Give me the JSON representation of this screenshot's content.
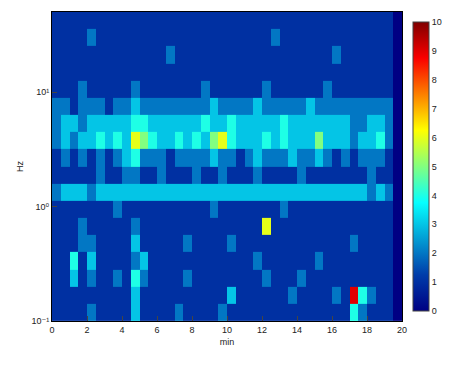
{
  "chart_data": {
    "type": "heatmap",
    "xlabel": "min",
    "ylabel": "Hz",
    "log": "y",
    "grid": false,
    "xlim": [
      0,
      20
    ],
    "xticks": [
      0,
      2,
      4,
      6,
      8,
      10,
      12,
      14,
      16,
      18,
      20
    ],
    "ylim": [
      0.1,
      50
    ],
    "yticks": [
      {
        "value": 0.1,
        "label": "10⁻¹"
      },
      {
        "value": 1,
        "label": "10⁰"
      },
      {
        "value": 10,
        "label": "10¹"
      }
    ],
    "x": [
      0.25,
      0.75,
      1.25,
      1.75,
      2.25,
      2.75,
      3.25,
      3.75,
      4.25,
      4.75,
      5.25,
      5.75,
      6.25,
      6.75,
      7.25,
      7.75,
      8.25,
      8.75,
      9.25,
      9.75,
      10.25,
      10.75,
      11.25,
      11.75,
      12.25,
      12.75,
      13.25,
      13.75,
      14.25,
      14.75,
      15.25,
      15.75,
      16.25,
      16.75,
      17.25,
      17.75,
      18.25,
      18.75,
      19.25,
      19.75
    ],
    "y": [
      0.119,
      0.168,
      0.237,
      0.335,
      0.473,
      0.668,
      0.944,
      1.33,
      1.88,
      2.66,
      3.76,
      5.31,
      7.5,
      10.6,
      15.0,
      21.1,
      29.9,
      42.2
    ],
    "z": [
      [
        1,
        1,
        1,
        1,
        2,
        1,
        1,
        1,
        1,
        3,
        1,
        1,
        1,
        1,
        2,
        1,
        1,
        1,
        1,
        2,
        1,
        1,
        1,
        1,
        1,
        1,
        1,
        1,
        1,
        1,
        1,
        1,
        1,
        1,
        4,
        2,
        1,
        1,
        1,
        0
      ],
      [
        1,
        1,
        1,
        1,
        1,
        1,
        1,
        1,
        1,
        3,
        1,
        1,
        1,
        1,
        1,
        1,
        1,
        1,
        1,
        1,
        3,
        1,
        1,
        1,
        1,
        1,
        1,
        2,
        1,
        1,
        1,
        1,
        2,
        1,
        9,
        4,
        2,
        1,
        1,
        0
      ],
      [
        1,
        1,
        3,
        1,
        2,
        1,
        1,
        2,
        1,
        4,
        2,
        1,
        1,
        1,
        1,
        2,
        1,
        1,
        1,
        1,
        1,
        1,
        1,
        1,
        2,
        1,
        1,
        1,
        2,
        1,
        1,
        1,
        1,
        1,
        1,
        1,
        1,
        1,
        1,
        0
      ],
      [
        1,
        1,
        4,
        1,
        3,
        1,
        1,
        1,
        1,
        2,
        3,
        1,
        1,
        1,
        1,
        1,
        1,
        1,
        1,
        1,
        1,
        1,
        1,
        2,
        1,
        1,
        1,
        1,
        1,
        1,
        2,
        1,
        1,
        1,
        1,
        1,
        1,
        1,
        1,
        0
      ],
      [
        1,
        1,
        1,
        2,
        2,
        1,
        1,
        1,
        1,
        3,
        1,
        1,
        1,
        1,
        1,
        2,
        1,
        1,
        1,
        1,
        2,
        1,
        1,
        1,
        1,
        1,
        1,
        1,
        1,
        1,
        1,
        1,
        1,
        1,
        2,
        1,
        1,
        1,
        1,
        0
      ],
      [
        1,
        1,
        1,
        2,
        1,
        1,
        1,
        1,
        1,
        2,
        1,
        1,
        1,
        1,
        1,
        1,
        1,
        1,
        1,
        1,
        1,
        1,
        1,
        1,
        6,
        1,
        1,
        1,
        1,
        1,
        1,
        1,
        1,
        1,
        1,
        1,
        1,
        1,
        1,
        0
      ],
      [
        1,
        1,
        1,
        1,
        1,
        1,
        1,
        2,
        1,
        1,
        1,
        1,
        1,
        1,
        1,
        1,
        1,
        1,
        2,
        1,
        1,
        1,
        1,
        1,
        1,
        1,
        2,
        1,
        1,
        1,
        1,
        1,
        1,
        1,
        1,
        1,
        1,
        1,
        1,
        0
      ],
      [
        2,
        3,
        3,
        3,
        2,
        3,
        3,
        3,
        3,
        3,
        3,
        3,
        3,
        3,
        3,
        3,
        3,
        3,
        3,
        3,
        3,
        3,
        3,
        3,
        3,
        3,
        3,
        3,
        3,
        3,
        3,
        3,
        3,
        3,
        3,
        3,
        2,
        3,
        2,
        0
      ],
      [
        1,
        1,
        1,
        1,
        1,
        2,
        1,
        1,
        2,
        2,
        1,
        1,
        2,
        1,
        1,
        1,
        2,
        1,
        1,
        2,
        1,
        1,
        1,
        2,
        1,
        1,
        1,
        1,
        2,
        1,
        1,
        1,
        1,
        1,
        1,
        1,
        2,
        1,
        1,
        0
      ],
      [
        1,
        2,
        1,
        2,
        1,
        2,
        1,
        2,
        3,
        4,
        2,
        2,
        2,
        1,
        2,
        2,
        2,
        2,
        3,
        2,
        2,
        1,
        2,
        3,
        2,
        2,
        2,
        3,
        2,
        2,
        3,
        2,
        1,
        2,
        1,
        2,
        2,
        2,
        1,
        0
      ],
      [
        2,
        3,
        2,
        3,
        3,
        4,
        3,
        4,
        3,
        6,
        5,
        4,
        3,
        3,
        4,
        3,
        4,
        3,
        5,
        6,
        4,
        3,
        3,
        3,
        4,
        3,
        4,
        3,
        3,
        3,
        5,
        3,
        3,
        3,
        2,
        3,
        3,
        4,
        2,
        0
      ],
      [
        2,
        3,
        3,
        2,
        3,
        3,
        3,
        3,
        3,
        4,
        4,
        3,
        3,
        3,
        3,
        3,
        3,
        4,
        3,
        3,
        4,
        3,
        3,
        3,
        3,
        3,
        4,
        3,
        3,
        3,
        3,
        3,
        3,
        3,
        2,
        2,
        3,
        3,
        2,
        0
      ],
      [
        2,
        2,
        1,
        2,
        2,
        2,
        1,
        2,
        2,
        3,
        2,
        2,
        2,
        2,
        2,
        2,
        2,
        2,
        3,
        2,
        2,
        2,
        2,
        3,
        2,
        2,
        2,
        2,
        2,
        3,
        2,
        2,
        2,
        2,
        2,
        2,
        2,
        2,
        2,
        0
      ],
      [
        1,
        1,
        1,
        2,
        1,
        1,
        1,
        1,
        1,
        2,
        1,
        1,
        1,
        1,
        1,
        1,
        1,
        2,
        1,
        1,
        1,
        1,
        1,
        1,
        2,
        1,
        1,
        1,
        1,
        1,
        1,
        2,
        1,
        1,
        1,
        1,
        1,
        1,
        1,
        0
      ],
      [
        1,
        1,
        1,
        1,
        1,
        1,
        1,
        1,
        1,
        1,
        1,
        1,
        1,
        1,
        1,
        1,
        1,
        1,
        1,
        1,
        1,
        1,
        1,
        1,
        1,
        1,
        1,
        1,
        1,
        1,
        1,
        1,
        1,
        1,
        1,
        1,
        1,
        1,
        1,
        0
      ],
      [
        1,
        1,
        1,
        1,
        1,
        1,
        1,
        1,
        1,
        1,
        1,
        1,
        1,
        2,
        1,
        1,
        1,
        1,
        1,
        1,
        1,
        1,
        1,
        1,
        1,
        1,
        1,
        1,
        1,
        1,
        1,
        1,
        2,
        1,
        1,
        1,
        1,
        1,
        1,
        0
      ],
      [
        1,
        1,
        1,
        1,
        2,
        1,
        1,
        1,
        1,
        1,
        1,
        1,
        1,
        1,
        1,
        1,
        1,
        1,
        1,
        1,
        1,
        1,
        1,
        1,
        1,
        2,
        1,
        1,
        1,
        1,
        1,
        1,
        1,
        1,
        1,
        1,
        1,
        1,
        1,
        0
      ],
      [
        1,
        1,
        1,
        1,
        1,
        1,
        1,
        1,
        1,
        1,
        1,
        1,
        1,
        1,
        1,
        1,
        1,
        1,
        1,
        1,
        1,
        1,
        1,
        1,
        1,
        1,
        1,
        1,
        1,
        1,
        1,
        1,
        1,
        1,
        1,
        1,
        1,
        1,
        1,
        0
      ]
    ],
    "zlim": [
      0,
      10
    ],
    "zticks": [
      0,
      1,
      2,
      3,
      4,
      5,
      6,
      7,
      8,
      9,
      10
    ]
  }
}
